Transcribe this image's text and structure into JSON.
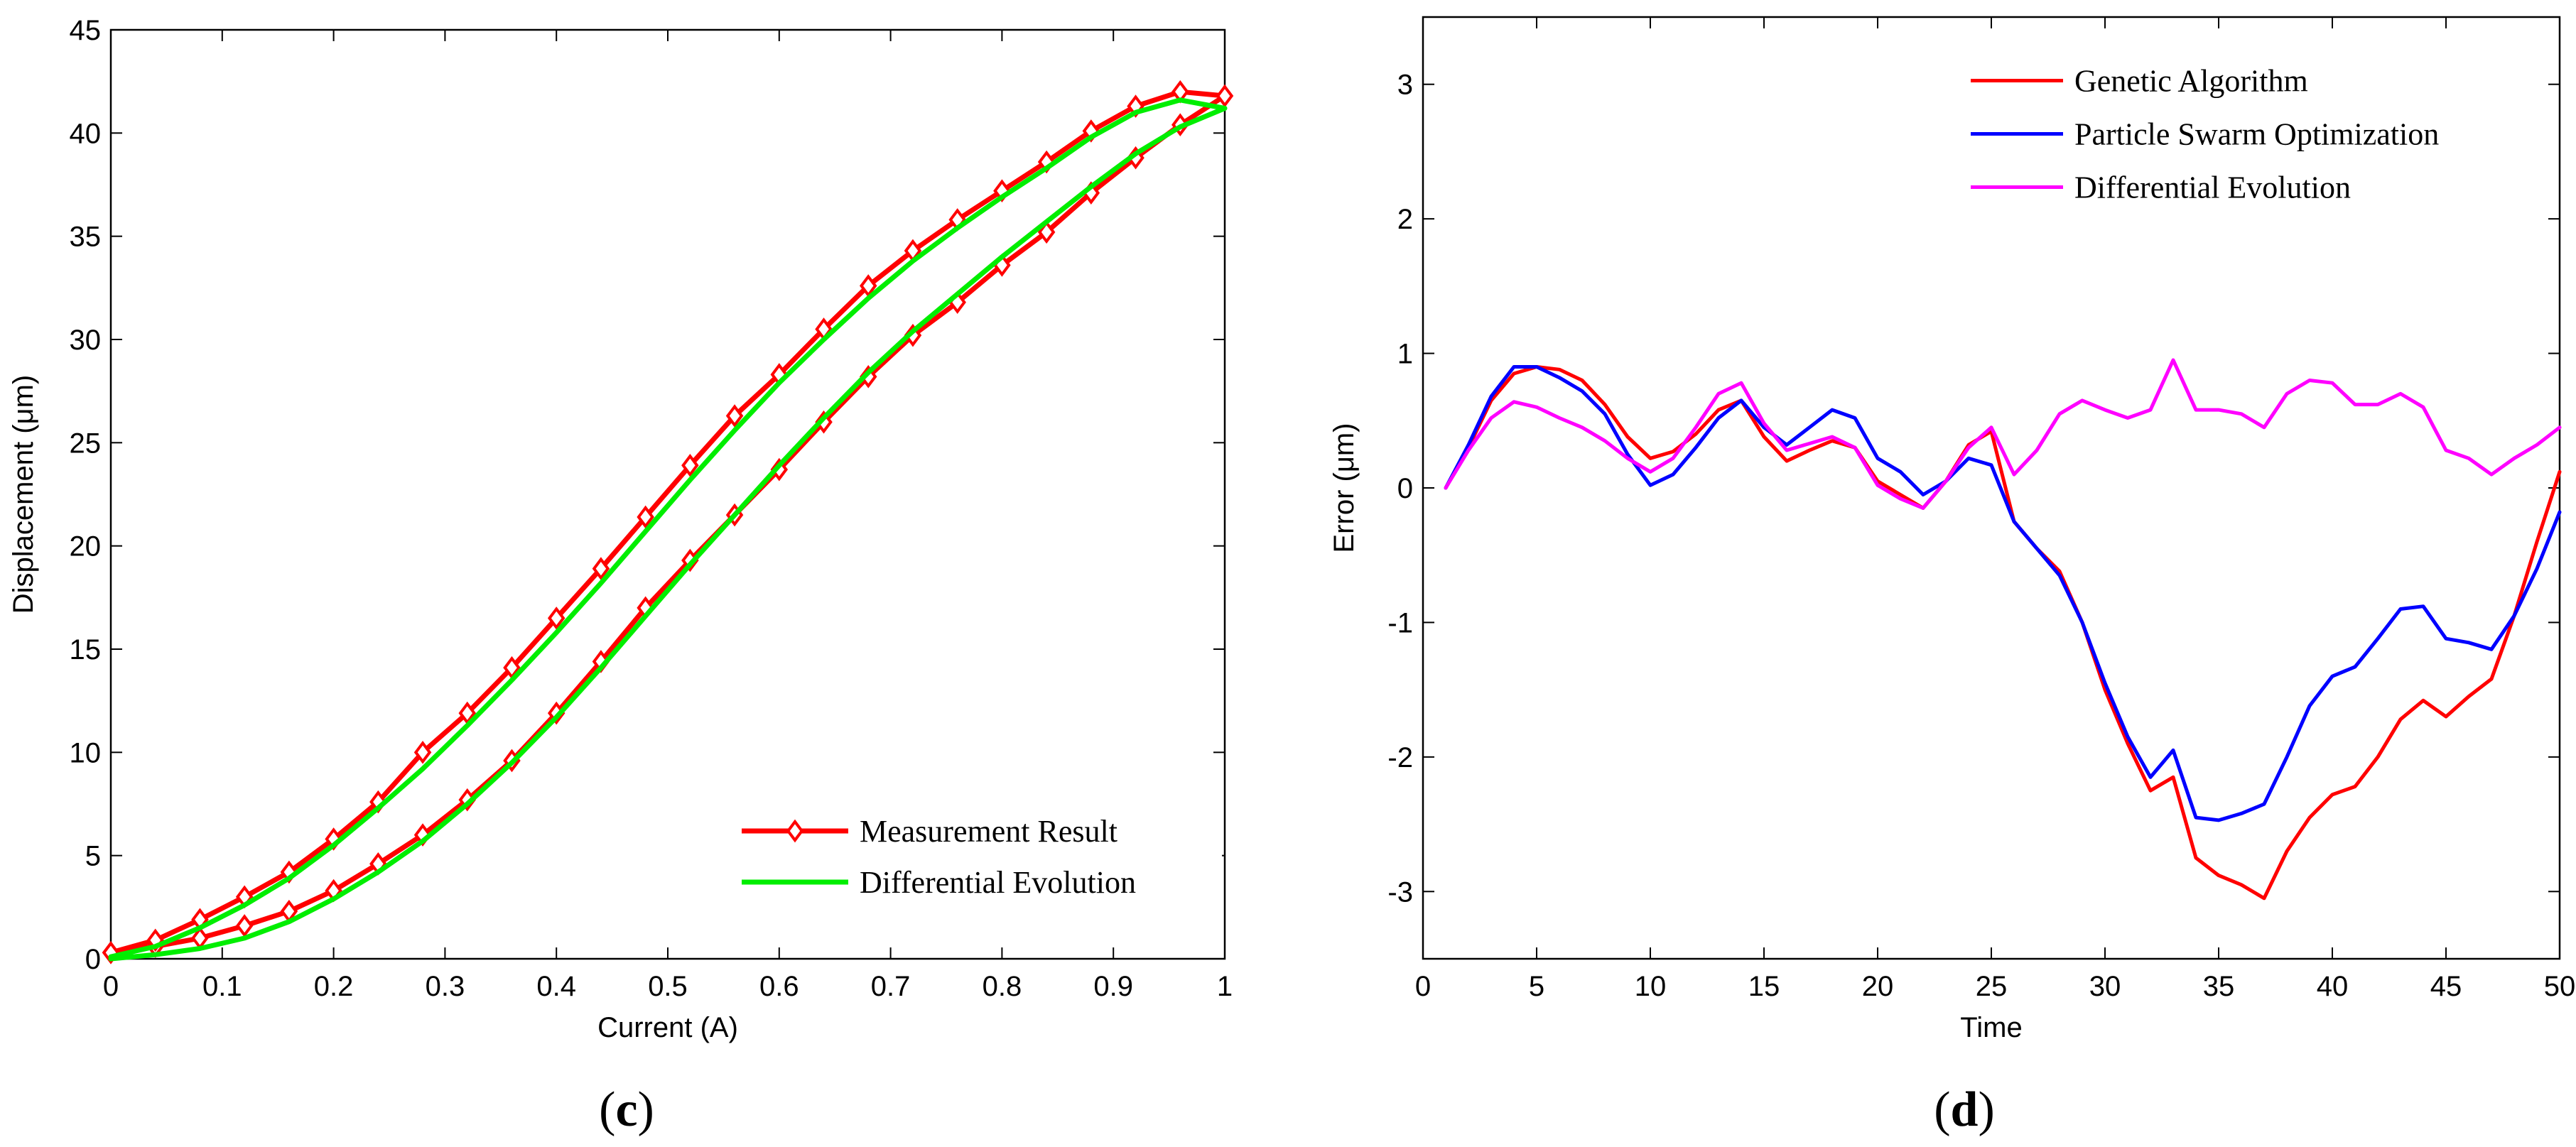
{
  "chart_data": [
    {
      "type": "line",
      "caption_open": "(",
      "caption_letter": "c",
      "caption_close": ")",
      "xlabel": "Current (A)",
      "ylabel": "Displacement (μm)",
      "xlim": [
        0,
        1
      ],
      "ylim": [
        0,
        45
      ],
      "xticks": [
        0,
        0.1,
        0.2,
        0.3,
        0.4,
        0.5,
        0.6,
        0.7,
        0.8,
        0.9,
        1
      ],
      "xtick_labels": [
        "0",
        "0.1",
        "0.2",
        "0.3",
        "0.4",
        "0.5",
        "0.6",
        "0.7",
        "0.8",
        "0.9",
        "1"
      ],
      "yticks": [
        0,
        5,
        10,
        15,
        20,
        25,
        30,
        35,
        40,
        45
      ],
      "ytick_labels": [
        "0",
        "5",
        "10",
        "15",
        "20",
        "25",
        "30",
        "35",
        "40",
        "45"
      ],
      "grid": false,
      "legend_position": "bottom-right",
      "series": [
        {
          "name": "Measurement Result",
          "color": "#ff0000",
          "marker": "diamond",
          "x": [
            0,
            0.04,
            0.08,
            0.12,
            0.16,
            0.2,
            0.24,
            0.28,
            0.32,
            0.36,
            0.4,
            0.44,
            0.48,
            0.52,
            0.56,
            0.6,
            0.64,
            0.68,
            0.72,
            0.76,
            0.8,
            0.84,
            0.88,
            0.92,
            0.96,
            1,
            0.96,
            0.92,
            0.88,
            0.84,
            0.8,
            0.76,
            0.72,
            0.68,
            0.64,
            0.6,
            0.56,
            0.52,
            0.48,
            0.44,
            0.4,
            0.36,
            0.32,
            0.28,
            0.24,
            0.2,
            0.16,
            0.12,
            0.08,
            0.04,
            0
          ],
          "y": [
            0.3,
            0.6,
            1.0,
            1.6,
            2.3,
            3.3,
            4.6,
            6.0,
            7.7,
            9.6,
            11.9,
            14.4,
            17.0,
            19.3,
            21.5,
            23.7,
            26.0,
            28.2,
            30.2,
            31.8,
            33.6,
            35.2,
            37.1,
            38.8,
            40.4,
            41.8,
            42.0,
            41.3,
            40.1,
            38.6,
            37.2,
            35.8,
            34.3,
            32.6,
            30.5,
            28.3,
            26.3,
            23.9,
            21.4,
            18.9,
            16.5,
            14.1,
            11.9,
            10.0,
            7.6,
            5.8,
            4.2,
            3.0,
            1.9,
            0.9,
            0.3
          ]
        },
        {
          "name": "Differential Evolution",
          "color": "#00ee00",
          "marker": "none",
          "x": [
            0,
            0.04,
            0.08,
            0.12,
            0.16,
            0.2,
            0.24,
            0.28,
            0.32,
            0.36,
            0.4,
            0.44,
            0.48,
            0.52,
            0.56,
            0.6,
            0.64,
            0.68,
            0.72,
            0.76,
            0.8,
            0.84,
            0.88,
            0.92,
            0.96,
            1,
            0.96,
            0.92,
            0.88,
            0.84,
            0.8,
            0.76,
            0.72,
            0.68,
            0.64,
            0.6,
            0.56,
            0.52,
            0.48,
            0.44,
            0.4,
            0.36,
            0.32,
            0.28,
            0.24,
            0.2,
            0.16,
            0.12,
            0.08,
            0.04,
            0
          ],
          "y": [
            0.0,
            0.2,
            0.5,
            1.0,
            1.8,
            2.9,
            4.2,
            5.7,
            7.5,
            9.5,
            11.7,
            14.1,
            16.6,
            19.1,
            21.5,
            23.9,
            26.2,
            28.4,
            30.4,
            32.2,
            34.0,
            35.7,
            37.4,
            39.0,
            40.3,
            41.2,
            41.6,
            41.0,
            39.8,
            38.3,
            36.9,
            35.4,
            33.8,
            32.0,
            30.0,
            27.9,
            25.6,
            23.2,
            20.7,
            18.2,
            15.8,
            13.5,
            11.3,
            9.2,
            7.3,
            5.5,
            3.9,
            2.6,
            1.5,
            0.6,
            0.1
          ]
        }
      ]
    },
    {
      "type": "line",
      "caption_open": "(",
      "caption_letter": "d",
      "caption_close": ")",
      "xlabel": "Time",
      "ylabel": "Error (μm)",
      "xlim": [
        0,
        50
      ],
      "ylim": [
        -3.5,
        3.5
      ],
      "xticks": [
        0,
        5,
        10,
        15,
        20,
        25,
        30,
        35,
        40,
        45,
        50
      ],
      "xtick_labels": [
        "0",
        "5",
        "10",
        "15",
        "20",
        "25",
        "30",
        "35",
        "40",
        "45",
        "50"
      ],
      "yticks": [
        -3,
        -2,
        -1,
        0,
        1,
        2,
        3
      ],
      "ytick_labels": [
        "-3",
        "-2",
        "-1",
        "0",
        "1",
        "2",
        "3"
      ],
      "grid": false,
      "legend_position": "top-right",
      "series": [
        {
          "name": "Genetic Algorithm",
          "color": "#ff0000",
          "x": [
            1,
            2,
            3,
            4,
            5,
            6,
            7,
            8,
            9,
            10,
            11,
            12,
            13,
            14,
            15,
            16,
            17,
            18,
            19,
            20,
            21,
            22,
            23,
            24,
            25,
            26,
            27,
            28,
            29,
            30,
            31,
            32,
            33,
            34,
            35,
            36,
            37,
            38,
            39,
            40,
            41,
            42,
            43,
            44,
            45,
            46,
            47,
            48,
            49,
            50
          ],
          "y": [
            0.0,
            0.3,
            0.65,
            0.85,
            0.9,
            0.88,
            0.8,
            0.62,
            0.38,
            0.22,
            0.27,
            0.4,
            0.58,
            0.65,
            0.38,
            0.2,
            0.28,
            0.35,
            0.3,
            0.05,
            -0.05,
            -0.15,
            0.05,
            0.32,
            0.42,
            -0.25,
            -0.45,
            -0.62,
            -1.0,
            -1.5,
            -1.9,
            -2.25,
            -2.15,
            -2.75,
            -2.88,
            -2.95,
            -3.05,
            -2.7,
            -2.45,
            -2.28,
            -2.22,
            -2.0,
            -1.72,
            -1.58,
            -1.7,
            -1.55,
            -1.42,
            -0.95,
            -0.4,
            0.12
          ]
        },
        {
          "name": "Particle Swarm Optimization",
          "color": "#0000ff",
          "x": [
            1,
            2,
            3,
            4,
            5,
            6,
            7,
            8,
            9,
            10,
            11,
            12,
            13,
            14,
            15,
            16,
            17,
            18,
            19,
            20,
            21,
            22,
            23,
            24,
            25,
            26,
            27,
            28,
            29,
            30,
            31,
            32,
            33,
            34,
            35,
            36,
            37,
            38,
            39,
            40,
            41,
            42,
            43,
            44,
            45,
            46,
            47,
            48,
            49,
            50
          ],
          "y": [
            0.0,
            0.32,
            0.68,
            0.9,
            0.9,
            0.82,
            0.72,
            0.55,
            0.25,
            0.02,
            0.1,
            0.3,
            0.52,
            0.65,
            0.45,
            0.32,
            0.45,
            0.58,
            0.52,
            0.22,
            0.12,
            -0.05,
            0.05,
            0.22,
            0.17,
            -0.25,
            -0.45,
            -0.65,
            -1.0,
            -1.45,
            -1.85,
            -2.15,
            -1.95,
            -2.45,
            -2.47,
            -2.42,
            -2.35,
            -2.0,
            -1.62,
            -1.4,
            -1.33,
            -1.12,
            -0.9,
            -0.88,
            -1.12,
            -1.15,
            -1.2,
            -0.95,
            -0.6,
            -0.18
          ]
        },
        {
          "name": "Differential Evolution",
          "color": "#ff00ff",
          "x": [
            1,
            2,
            3,
            4,
            5,
            6,
            7,
            8,
            9,
            10,
            11,
            12,
            13,
            14,
            15,
            16,
            17,
            18,
            19,
            20,
            21,
            22,
            23,
            24,
            25,
            26,
            27,
            28,
            29,
            30,
            31,
            32,
            33,
            34,
            35,
            36,
            37,
            38,
            39,
            40,
            41,
            42,
            43,
            44,
            45,
            46,
            47,
            48,
            49,
            50
          ],
          "y": [
            0.0,
            0.28,
            0.52,
            0.64,
            0.6,
            0.52,
            0.45,
            0.35,
            0.22,
            0.12,
            0.22,
            0.45,
            0.7,
            0.78,
            0.48,
            0.28,
            0.33,
            0.38,
            0.3,
            0.02,
            -0.08,
            -0.15,
            0.05,
            0.3,
            0.45,
            0.1,
            0.28,
            0.55,
            0.65,
            0.58,
            0.52,
            0.58,
            0.95,
            0.58,
            0.58,
            0.55,
            0.45,
            0.7,
            0.8,
            0.78,
            0.62,
            0.62,
            0.7,
            0.6,
            0.28,
            0.22,
            0.1,
            0.22,
            0.32,
            0.45
          ]
        }
      ]
    }
  ]
}
